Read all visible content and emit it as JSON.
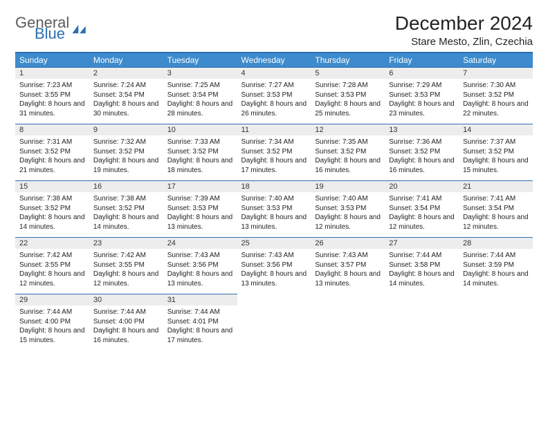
{
  "brand": {
    "general": "General",
    "blue": "Blue"
  },
  "title": "December 2024",
  "location": "Stare Mesto, Zlin, Czechia",
  "colors": {
    "header_bg": "#3d8bcc",
    "header_text": "#ffffff",
    "rule": "#2b6fb0",
    "daynum_bg": "#ededed",
    "text": "#222222",
    "logo_gray": "#5b5b5b",
    "logo_blue": "#2b6fb0"
  },
  "weekdays": [
    "Sunday",
    "Monday",
    "Tuesday",
    "Wednesday",
    "Thursday",
    "Friday",
    "Saturday"
  ],
  "weeks": [
    [
      {
        "n": "1",
        "sr": "7:23 AM",
        "ss": "3:55 PM",
        "dl": "8 hours and 31 minutes."
      },
      {
        "n": "2",
        "sr": "7:24 AM",
        "ss": "3:54 PM",
        "dl": "8 hours and 30 minutes."
      },
      {
        "n": "3",
        "sr": "7:25 AM",
        "ss": "3:54 PM",
        "dl": "8 hours and 28 minutes."
      },
      {
        "n": "4",
        "sr": "7:27 AM",
        "ss": "3:53 PM",
        "dl": "8 hours and 26 minutes."
      },
      {
        "n": "5",
        "sr": "7:28 AM",
        "ss": "3:53 PM",
        "dl": "8 hours and 25 minutes."
      },
      {
        "n": "6",
        "sr": "7:29 AM",
        "ss": "3:53 PM",
        "dl": "8 hours and 23 minutes."
      },
      {
        "n": "7",
        "sr": "7:30 AM",
        "ss": "3:52 PM",
        "dl": "8 hours and 22 minutes."
      }
    ],
    [
      {
        "n": "8",
        "sr": "7:31 AM",
        "ss": "3:52 PM",
        "dl": "8 hours and 21 minutes."
      },
      {
        "n": "9",
        "sr": "7:32 AM",
        "ss": "3:52 PM",
        "dl": "8 hours and 19 minutes."
      },
      {
        "n": "10",
        "sr": "7:33 AM",
        "ss": "3:52 PM",
        "dl": "8 hours and 18 minutes."
      },
      {
        "n": "11",
        "sr": "7:34 AM",
        "ss": "3:52 PM",
        "dl": "8 hours and 17 minutes."
      },
      {
        "n": "12",
        "sr": "7:35 AM",
        "ss": "3:52 PM",
        "dl": "8 hours and 16 minutes."
      },
      {
        "n": "13",
        "sr": "7:36 AM",
        "ss": "3:52 PM",
        "dl": "8 hours and 16 minutes."
      },
      {
        "n": "14",
        "sr": "7:37 AM",
        "ss": "3:52 PM",
        "dl": "8 hours and 15 minutes."
      }
    ],
    [
      {
        "n": "15",
        "sr": "7:38 AM",
        "ss": "3:52 PM",
        "dl": "8 hours and 14 minutes."
      },
      {
        "n": "16",
        "sr": "7:38 AM",
        "ss": "3:52 PM",
        "dl": "8 hours and 14 minutes."
      },
      {
        "n": "17",
        "sr": "7:39 AM",
        "ss": "3:53 PM",
        "dl": "8 hours and 13 minutes."
      },
      {
        "n": "18",
        "sr": "7:40 AM",
        "ss": "3:53 PM",
        "dl": "8 hours and 13 minutes."
      },
      {
        "n": "19",
        "sr": "7:40 AM",
        "ss": "3:53 PM",
        "dl": "8 hours and 12 minutes."
      },
      {
        "n": "20",
        "sr": "7:41 AM",
        "ss": "3:54 PM",
        "dl": "8 hours and 12 minutes."
      },
      {
        "n": "21",
        "sr": "7:41 AM",
        "ss": "3:54 PM",
        "dl": "8 hours and 12 minutes."
      }
    ],
    [
      {
        "n": "22",
        "sr": "7:42 AM",
        "ss": "3:55 PM",
        "dl": "8 hours and 12 minutes."
      },
      {
        "n": "23",
        "sr": "7:42 AM",
        "ss": "3:55 PM",
        "dl": "8 hours and 12 minutes."
      },
      {
        "n": "24",
        "sr": "7:43 AM",
        "ss": "3:56 PM",
        "dl": "8 hours and 13 minutes."
      },
      {
        "n": "25",
        "sr": "7:43 AM",
        "ss": "3:56 PM",
        "dl": "8 hours and 13 minutes."
      },
      {
        "n": "26",
        "sr": "7:43 AM",
        "ss": "3:57 PM",
        "dl": "8 hours and 13 minutes."
      },
      {
        "n": "27",
        "sr": "7:44 AM",
        "ss": "3:58 PM",
        "dl": "8 hours and 14 minutes."
      },
      {
        "n": "28",
        "sr": "7:44 AM",
        "ss": "3:59 PM",
        "dl": "8 hours and 14 minutes."
      }
    ],
    [
      {
        "n": "29",
        "sr": "7:44 AM",
        "ss": "4:00 PM",
        "dl": "8 hours and 15 minutes."
      },
      {
        "n": "30",
        "sr": "7:44 AM",
        "ss": "4:00 PM",
        "dl": "8 hours and 16 minutes."
      },
      {
        "n": "31",
        "sr": "7:44 AM",
        "ss": "4:01 PM",
        "dl": "8 hours and 17 minutes."
      },
      null,
      null,
      null,
      null
    ]
  ],
  "labels": {
    "sunrise": "Sunrise:",
    "sunset": "Sunset:",
    "daylight": "Daylight:"
  }
}
